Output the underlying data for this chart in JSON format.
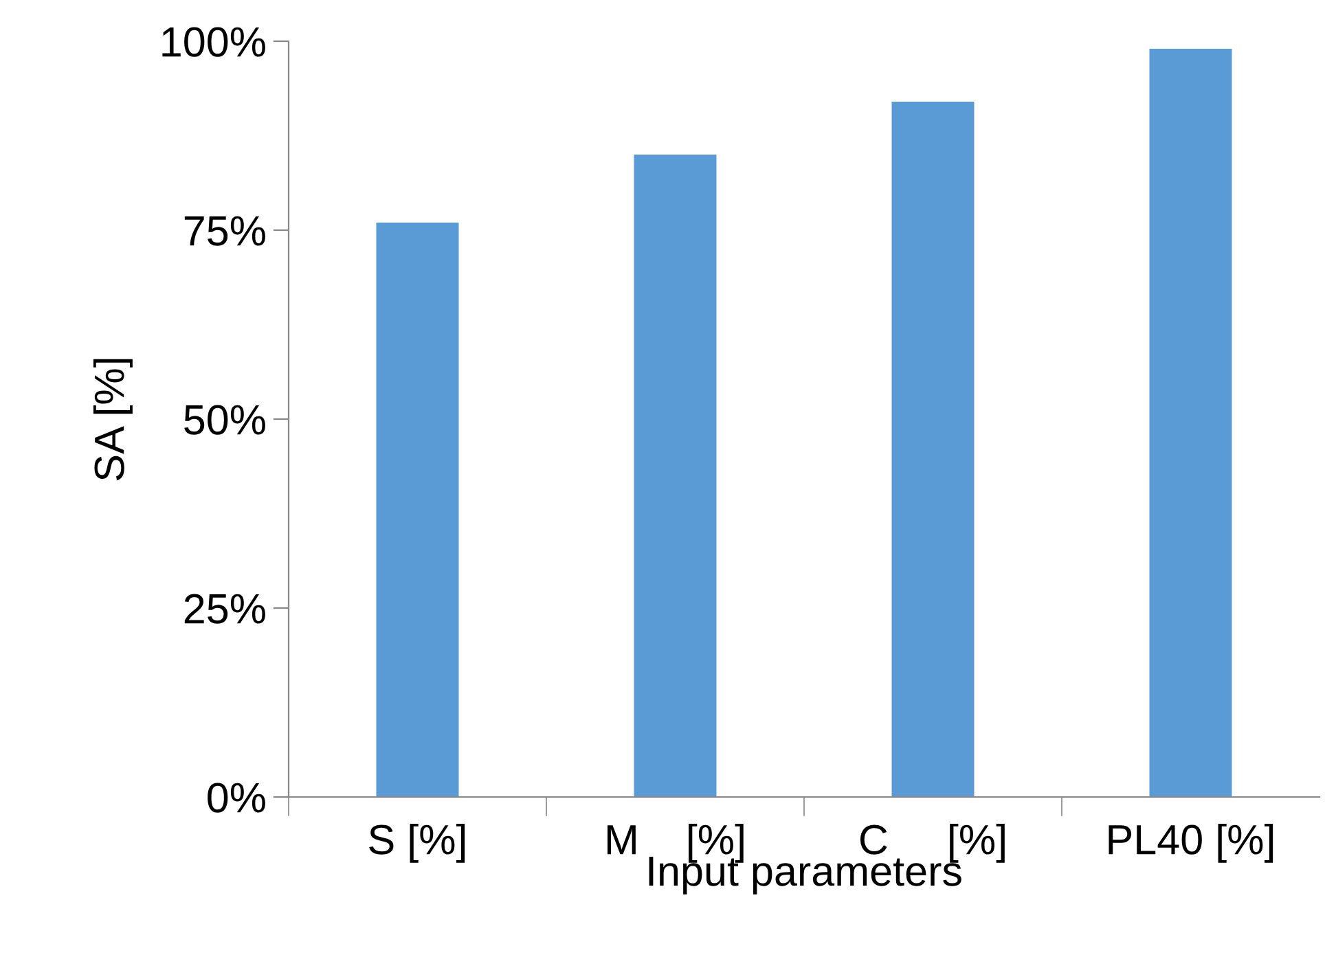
{
  "chart_data": {
    "type": "bar",
    "xlabel": "Input parameters",
    "ylabel": "SA [%]",
    "categories": [
      "S [%]",
      "M    [%]",
      "C     [%]",
      "PL40 [%]"
    ],
    "values": [
      76,
      85,
      92,
      99
    ],
    "color": "#5b9bd5",
    "ylim": [
      0,
      100
    ],
    "yticks": [
      {
        "value": 0,
        "label": "0%"
      },
      {
        "value": 25,
        "label": "25%"
      },
      {
        "value": 50,
        "label": "50%"
      },
      {
        "value": 75,
        "label": "75%"
      },
      {
        "value": 100,
        "label": "100%"
      }
    ],
    "grid": false,
    "legend": false
  }
}
